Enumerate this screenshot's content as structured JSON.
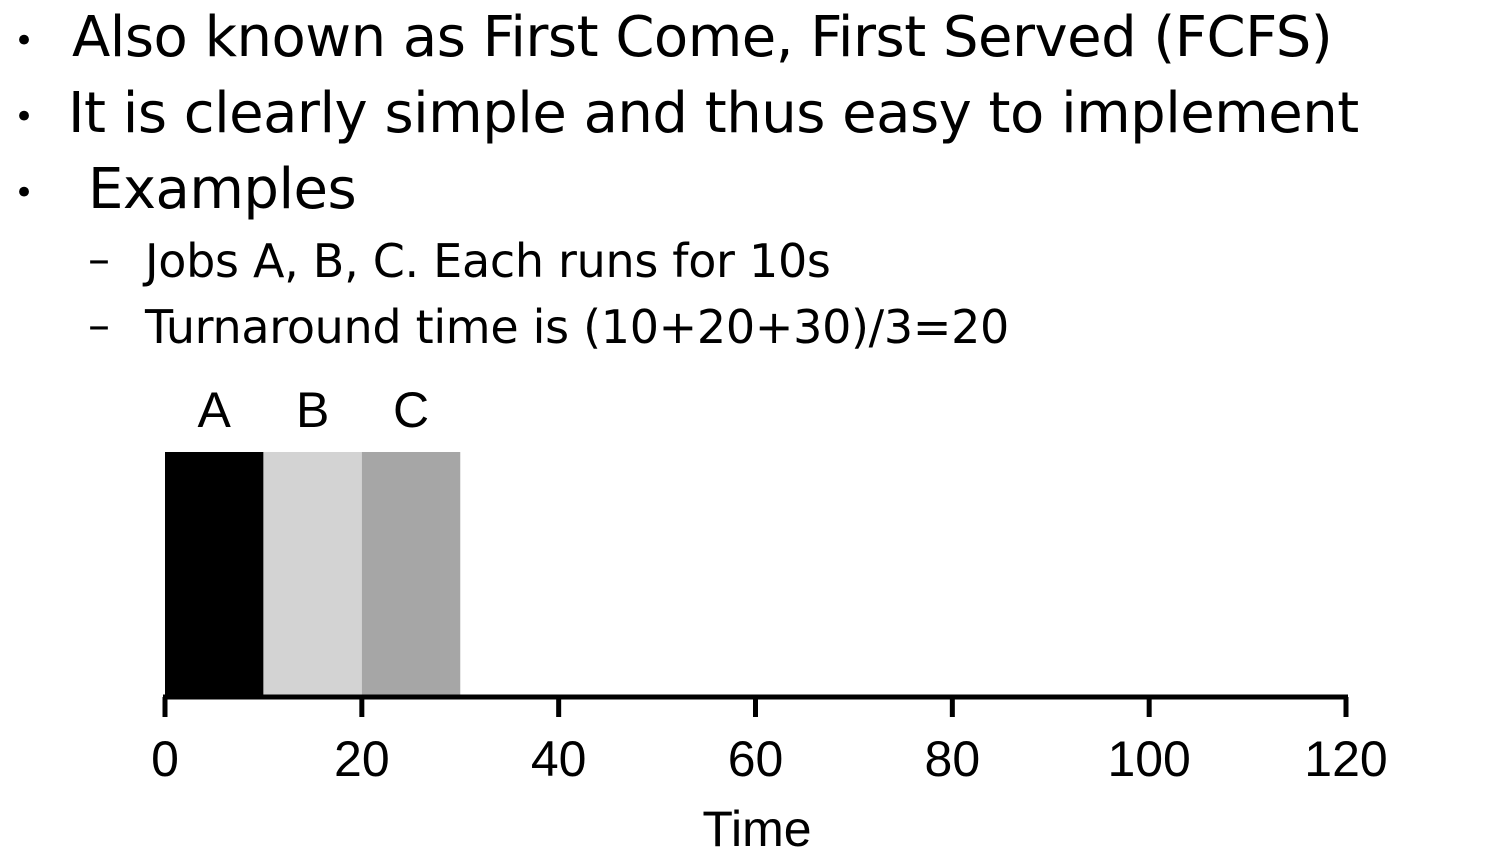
{
  "bullets": [
    {
      "text": "Also known as First Come, First Served (FCFS)"
    },
    {
      "text": "It is clearly simple and thus easy to implement"
    },
    {
      "text": "Examples",
      "sub": [
        {
          "text": "Jobs A, B, C. Each runs for 10s"
        },
        {
          "text": "Turnaround time is (10+20+30)/3=20"
        }
      ]
    }
  ],
  "chart_data": {
    "type": "bar",
    "xlabel": "Time",
    "xlim": [
      0,
      120
    ],
    "xticks": [
      0,
      20,
      40,
      60,
      80,
      100,
      120
    ],
    "jobs": [
      {
        "name": "A",
        "start": 0,
        "end": 10,
        "color": "#000000"
      },
      {
        "name": "B",
        "start": 10,
        "end": 20,
        "color": "#d3d3d3"
      },
      {
        "name": "C",
        "start": 20,
        "end": 30,
        "color": "#a6a6a6"
      }
    ]
  }
}
